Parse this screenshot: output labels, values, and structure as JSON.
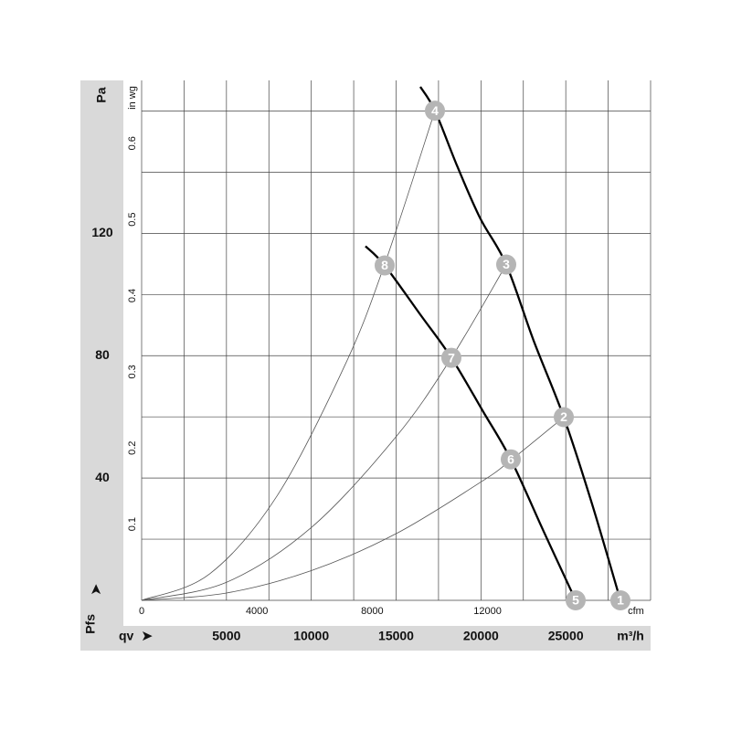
{
  "chart_data": {
    "type": "fan-curve",
    "y_label": "Pa",
    "y2_label": "in wg",
    "y_symbol": "Pfs",
    "x_symbol": "qv",
    "x_label": "m³/h",
    "x2_label": "cfm",
    "xlim": [
      0,
      30000
    ],
    "xticks": [
      5000,
      10000,
      15000,
      20000,
      25000
    ],
    "xgrid": [
      0,
      2500,
      5000,
      7500,
      10000,
      12500,
      15000,
      17500,
      20000,
      22500,
      25000,
      27500,
      30000
    ],
    "x2lim": [
      0,
      17657
    ],
    "x2ticks": [
      0,
      4000,
      8000,
      12000
    ],
    "ylim": [
      0,
      170
    ],
    "yticks": [
      40,
      80,
      120
    ],
    "ygrid": [
      0,
      20,
      40,
      60,
      80,
      100,
      120,
      140,
      160
    ],
    "y2lim": [
      0,
      0.6825
    ],
    "y2ticks": [
      0.1,
      0.2,
      0.3,
      0.4,
      0.5,
      0.6
    ],
    "series": [
      {
        "name": null,
        "style": "fan",
        "color": "#000000",
        "x": [
          16427,
          17289,
          18600,
          19950,
          21490,
          23100,
          24883,
          26550,
          28222
        ],
        "values": [
          167.9,
          160.1,
          142,
          125,
          109.8,
          85,
          59.9,
          31.5,
          0
        ]
      },
      {
        "name": null,
        "style": "fan",
        "color": "#000000",
        "x": [
          13194,
          14326,
          16430,
          18258,
          20100,
          21759,
          23700,
          25582
        ],
        "values": [
          115.8,
          109.5,
          93.4,
          79.3,
          62,
          46.1,
          22.5,
          0
        ]
      },
      {
        "name": null,
        "style": "system",
        "color": "#555555",
        "x": [
          0,
          4000,
          8000,
          12000,
          14326,
          17289
        ],
        "values": [
          0,
          8.6,
          34.3,
          77.1,
          109.9,
          160.1
        ]
      },
      {
        "name": null,
        "style": "system",
        "color": "#555555",
        "x": [
          0,
          5000,
          10000,
          15000,
          18258,
          21490
        ],
        "values": [
          0,
          5.9,
          23.8,
          53.5,
          79.3,
          109.8
        ]
      },
      {
        "name": null,
        "style": "system",
        "color": "#555555",
        "x": [
          0,
          5000,
          10000,
          15000,
          20000,
          21759,
          24883
        ],
        "values": [
          0,
          2.4,
          9.7,
          21.8,
          38.7,
          45.8,
          59.9
        ]
      }
    ],
    "points": [
      {
        "label": "1",
        "x": 28222,
        "y": 0
      },
      {
        "label": "2",
        "x": 24883,
        "y": 59.9
      },
      {
        "label": "3",
        "x": 21490,
        "y": 109.8
      },
      {
        "label": "4",
        "x": 17289,
        "y": 160.1
      },
      {
        "label": "5",
        "x": 25582,
        "y": 0
      },
      {
        "label": "6",
        "x": 21759,
        "y": 46.1
      },
      {
        "label": "7",
        "x": 18258,
        "y": 79.3
      },
      {
        "label": "8",
        "x": 14326,
        "y": 109.5
      }
    ],
    "marker_color": "#b5b5b5"
  }
}
